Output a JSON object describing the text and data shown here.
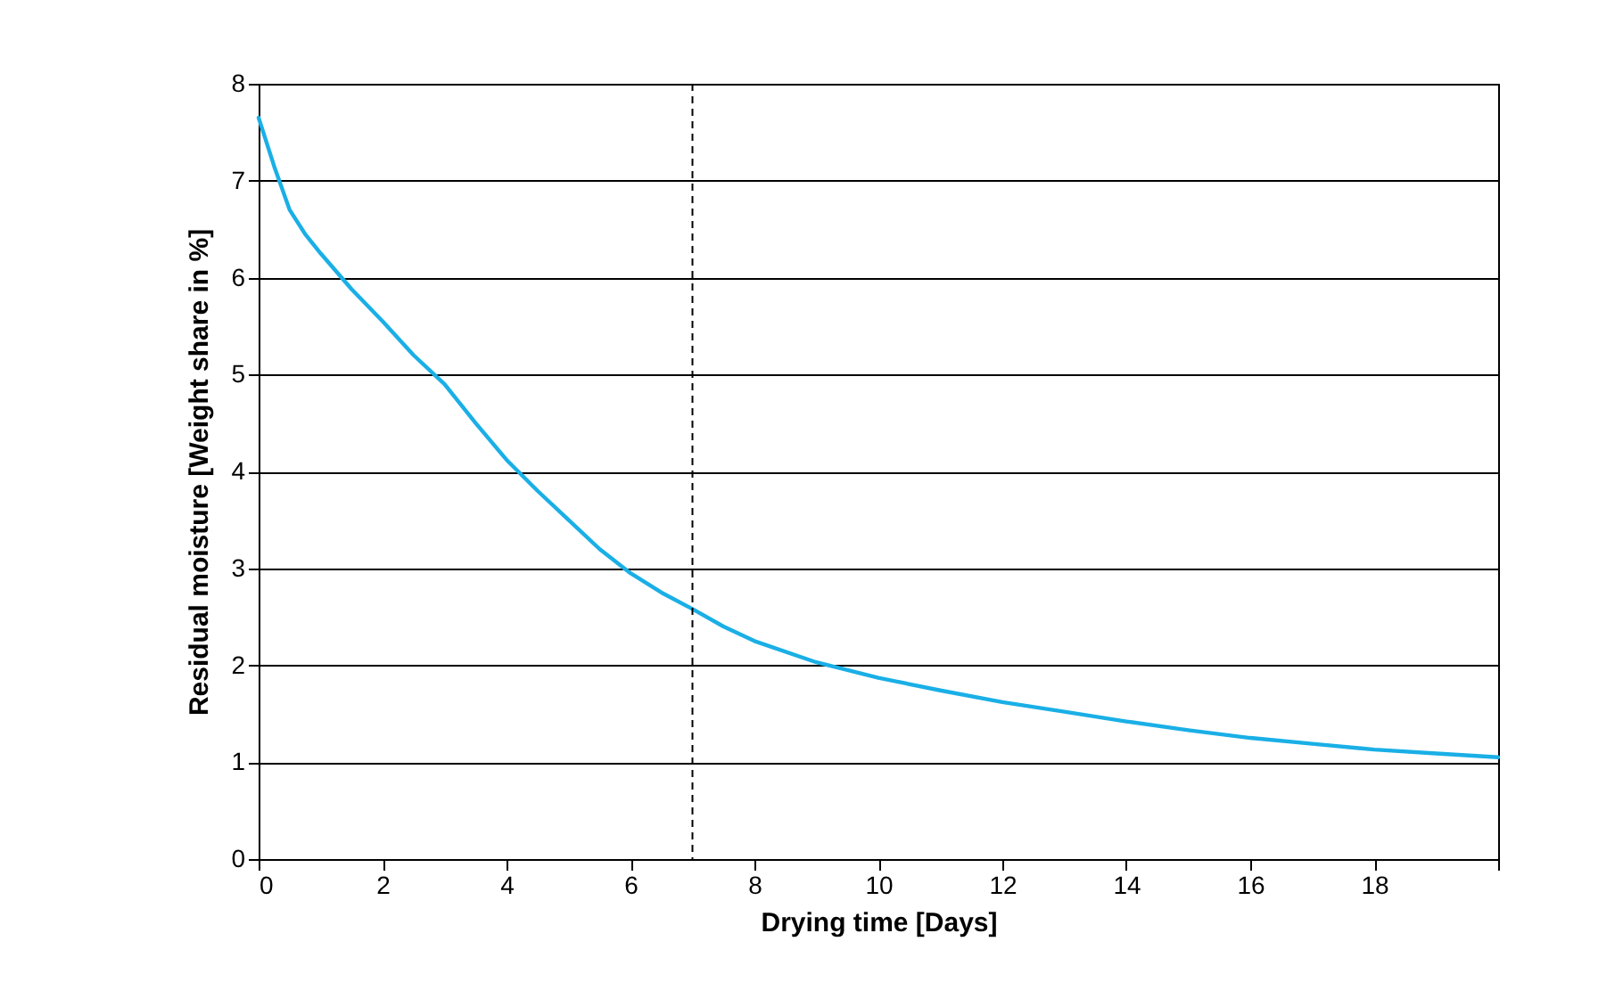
{
  "chart_data": {
    "type": "line",
    "xlabel": "Drying time [Days]",
    "ylabel": "Residual moisture [Weight share in %]",
    "x": [
      0,
      0.25,
      0.5,
      0.75,
      1,
      1.5,
      2,
      2.5,
      3,
      3.5,
      4,
      4.5,
      5,
      5.5,
      6,
      6.5,
      7,
      7.5,
      8,
      9,
      10,
      11,
      12,
      13,
      14,
      15,
      16,
      17,
      18,
      19,
      20
    ],
    "series": [
      {
        "color": "#1aafe6",
        "values": [
          7.65,
          7.15,
          6.7,
          6.45,
          6.25,
          5.88,
          5.55,
          5.2,
          4.9,
          4.5,
          4.12,
          3.8,
          3.5,
          3.2,
          2.95,
          2.75,
          2.58,
          2.4,
          2.25,
          2.03,
          1.87,
          1.74,
          1.62,
          1.52,
          1.42,
          1.33,
          1.25,
          1.19,
          1.13,
          1.09,
          1.05
        ]
      }
    ],
    "xlim": [
      0,
      20
    ],
    "xticks": [
      0,
      2,
      4,
      6,
      8,
      10,
      12,
      14,
      16,
      18,
      {
        "value": 20,
        "label": null
      }
    ],
    "ylim": [
      0,
      8
    ],
    "yticks": [
      0,
      1,
      2,
      3,
      4,
      5,
      6,
      7,
      8
    ],
    "grid": "y",
    "marker": "none",
    "line_style": "solid",
    "ref_lines": [
      {
        "axis": "x",
        "value": 7,
        "label": null,
        "color": "#000000",
        "line_style": "dashed"
      }
    ]
  }
}
